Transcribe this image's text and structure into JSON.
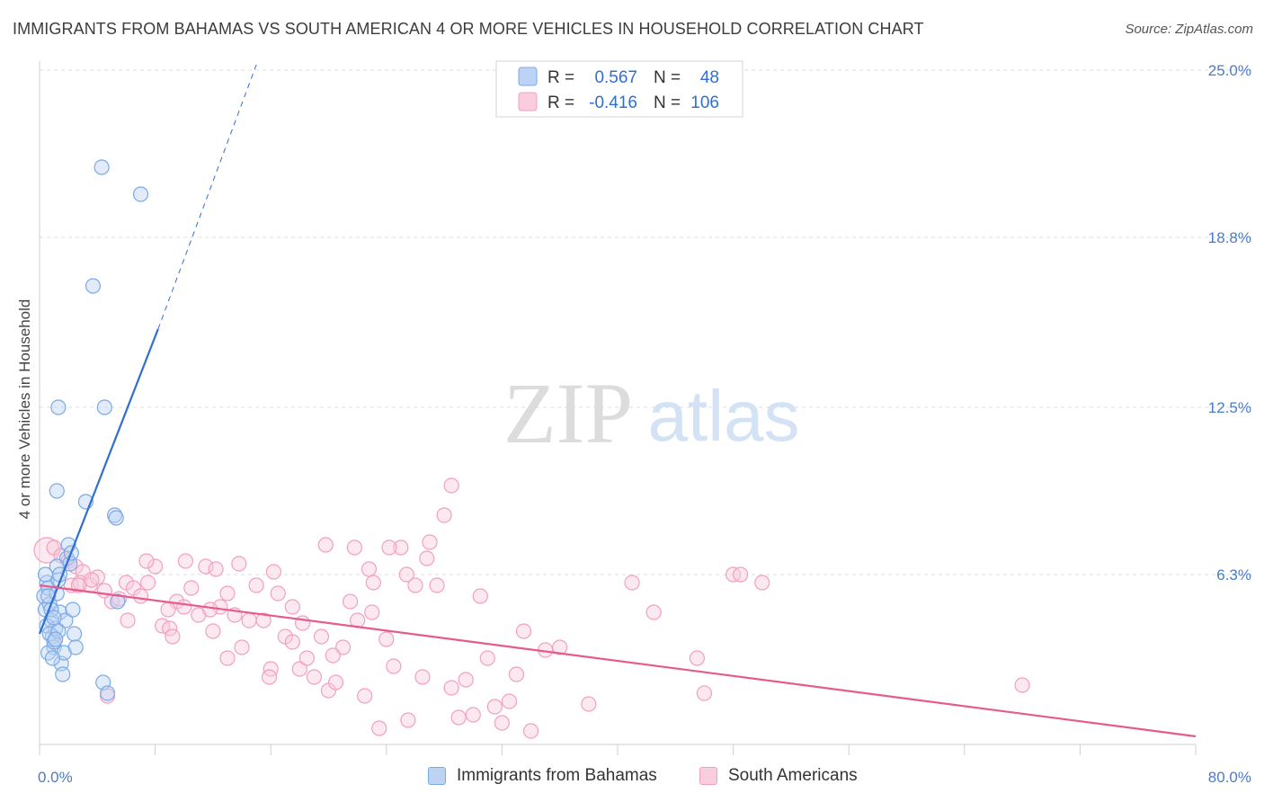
{
  "title": "IMMIGRANTS FROM BAHAMAS VS SOUTH AMERICAN 4 OR MORE VEHICLES IN HOUSEHOLD CORRELATION CHART",
  "source": "Source: ZipAtlas.com",
  "watermark": {
    "zip": "ZIP",
    "atlas": "atlas"
  },
  "chart_data": {
    "type": "scatter",
    "ylabel": "4 or more Vehicles in Household",
    "xlim": [
      0,
      80
    ],
    "ylim": [
      0,
      25
    ],
    "x_tick_labels": [
      "0.0%",
      "80.0%"
    ],
    "y_ticks": [
      6.3,
      12.5,
      18.8,
      25.0
    ],
    "y_tick_labels": [
      "6.3%",
      "12.5%",
      "18.8%",
      "25.0%"
    ],
    "grid": true,
    "legend_placement": "top-center",
    "series": [
      {
        "name": "Immigrants from Bahamas",
        "color": "#7aaae6",
        "line_color": "#2f6fd3",
        "r_label": "R =",
        "r_value": "0.567",
        "n_label": "N =",
        "n_value": "48",
        "trend": {
          "x": [
            0.0,
            8.2
          ],
          "y": [
            4.1,
            15.4
          ],
          "dashed_to": [
            15.0,
            25.2
          ]
        },
        "points": [
          [
            0.3,
            5.5
          ],
          [
            0.4,
            5.0
          ],
          [
            0.5,
            6.0
          ],
          [
            0.6,
            5.8
          ],
          [
            0.7,
            5.2
          ],
          [
            0.8,
            4.6
          ],
          [
            0.9,
            4.0
          ],
          [
            1.0,
            3.6
          ],
          [
            1.1,
            4.3
          ],
          [
            1.2,
            5.6
          ],
          [
            1.3,
            6.1
          ],
          [
            1.4,
            4.9
          ],
          [
            0.5,
            4.4
          ],
          [
            0.6,
            3.4
          ],
          [
            0.7,
            4.1
          ],
          [
            0.8,
            5.0
          ],
          [
            1.0,
            3.8
          ],
          [
            1.5,
            3.0
          ],
          [
            1.6,
            2.6
          ],
          [
            1.7,
            3.4
          ],
          [
            1.8,
            4.6
          ],
          [
            1.9,
            6.9
          ],
          [
            2.0,
            7.4
          ],
          [
            2.1,
            6.7
          ],
          [
            2.2,
            7.1
          ],
          [
            2.3,
            5.0
          ],
          [
            2.4,
            4.1
          ],
          [
            2.5,
            3.6
          ],
          [
            1.2,
            6.6
          ],
          [
            1.4,
            6.3
          ],
          [
            0.4,
            6.3
          ],
          [
            0.6,
            5.5
          ],
          [
            1.0,
            4.7
          ],
          [
            1.3,
            4.2
          ],
          [
            0.9,
            3.2
          ],
          [
            1.2,
            9.4
          ],
          [
            1.3,
            12.5
          ],
          [
            3.2,
            9.0
          ],
          [
            4.4,
            2.3
          ],
          [
            4.5,
            12.5
          ],
          [
            3.7,
            17.0
          ],
          [
            4.3,
            21.4
          ],
          [
            5.2,
            8.5
          ],
          [
            5.3,
            8.4
          ],
          [
            5.4,
            5.3
          ],
          [
            7.0,
            20.4
          ],
          [
            4.7,
            1.9
          ],
          [
            1.1,
            3.9
          ]
        ]
      },
      {
        "name": "South Americans",
        "color": "#f2a0bd",
        "line_color": "#e45b8c",
        "r_label": "R =",
        "r_value": "-0.416",
        "n_label": "N =",
        "n_value": "106",
        "trend": {
          "x": [
            0.0,
            80.0
          ],
          "y": [
            5.9,
            0.3
          ]
        },
        "points": [
          [
            0.5,
            7.2
          ],
          [
            1.0,
            7.3
          ],
          [
            1.5,
            7.0
          ],
          [
            2.0,
            6.8
          ],
          [
            2.5,
            6.6
          ],
          [
            3.0,
            6.4
          ],
          [
            2.2,
            5.9
          ],
          [
            2.8,
            6.0
          ],
          [
            3.5,
            5.9
          ],
          [
            4.0,
            6.2
          ],
          [
            4.5,
            5.7
          ],
          [
            5.0,
            5.3
          ],
          [
            5.5,
            5.4
          ],
          [
            6.0,
            6.0
          ],
          [
            6.5,
            5.8
          ],
          [
            7.0,
            5.5
          ],
          [
            7.5,
            6.0
          ],
          [
            8.0,
            6.6
          ],
          [
            8.5,
            4.4
          ],
          [
            9.0,
            4.3
          ],
          [
            9.5,
            5.3
          ],
          [
            10.0,
            5.1
          ],
          [
            10.5,
            5.8
          ],
          [
            11.0,
            4.8
          ],
          [
            11.5,
            6.6
          ],
          [
            12.0,
            4.2
          ],
          [
            12.5,
            5.1
          ],
          [
            13.0,
            5.6
          ],
          [
            13.5,
            4.8
          ],
          [
            14.0,
            3.6
          ],
          [
            14.5,
            4.6
          ],
          [
            15.0,
            5.9
          ],
          [
            15.5,
            4.6
          ],
          [
            16.0,
            2.8
          ],
          [
            16.5,
            5.6
          ],
          [
            17.0,
            4.0
          ],
          [
            17.5,
            3.8
          ],
          [
            18.0,
            2.8
          ],
          [
            18.5,
            3.2
          ],
          [
            19.0,
            2.5
          ],
          [
            19.5,
            4.0
          ],
          [
            20.0,
            2.0
          ],
          [
            20.5,
            2.3
          ],
          [
            21.0,
            3.6
          ],
          [
            21.5,
            5.3
          ],
          [
            22.0,
            4.6
          ],
          [
            22.5,
            1.8
          ],
          [
            23.0,
            4.9
          ],
          [
            23.5,
            0.6
          ],
          [
            24.0,
            3.9
          ],
          [
            24.5,
            2.9
          ],
          [
            25.0,
            7.3
          ],
          [
            25.5,
            0.9
          ],
          [
            26.0,
            5.9
          ],
          [
            26.5,
            2.5
          ],
          [
            27.0,
            7.5
          ],
          [
            27.5,
            5.9
          ],
          [
            28.0,
            8.5
          ],
          [
            28.5,
            2.1
          ],
          [
            29.0,
            1.0
          ],
          [
            29.5,
            2.4
          ],
          [
            30.0,
            1.1
          ],
          [
            30.5,
            5.5
          ],
          [
            31.0,
            3.2
          ],
          [
            31.5,
            1.4
          ],
          [
            32.0,
            0.8
          ],
          [
            32.5,
            1.6
          ],
          [
            33.0,
            2.6
          ],
          [
            33.5,
            4.2
          ],
          [
            34.0,
            0.5
          ],
          [
            35.0,
            3.5
          ],
          [
            36.0,
            3.6
          ],
          [
            38.0,
            1.5
          ],
          [
            41.0,
            6.0
          ],
          [
            42.5,
            4.9
          ],
          [
            45.5,
            3.2
          ],
          [
            46.0,
            1.9
          ],
          [
            48.0,
            6.3
          ],
          [
            48.5,
            6.3
          ],
          [
            50.0,
            6.0
          ],
          [
            68.0,
            2.2
          ],
          [
            28.5,
            9.6
          ],
          [
            19.8,
            7.4
          ],
          [
            21.8,
            7.3
          ],
          [
            17.5,
            5.1
          ],
          [
            12.2,
            6.5
          ],
          [
            13.8,
            6.7
          ],
          [
            16.2,
            6.4
          ],
          [
            10.1,
            6.8
          ],
          [
            9.2,
            4.0
          ],
          [
            6.1,
            4.6
          ],
          [
            3.6,
            6.1
          ],
          [
            2.7,
            5.9
          ],
          [
            4.7,
            1.8
          ],
          [
            7.4,
            6.8
          ],
          [
            22.8,
            6.5
          ],
          [
            24.2,
            7.3
          ],
          [
            25.4,
            6.3
          ],
          [
            26.8,
            6.9
          ],
          [
            15.9,
            2.5
          ],
          [
            11.8,
            5.0
          ],
          [
            8.9,
            5.0
          ],
          [
            18.2,
            4.5
          ],
          [
            20.3,
            3.3
          ],
          [
            23.1,
            6.0
          ],
          [
            13.0,
            3.2
          ]
        ]
      }
    ]
  }
}
